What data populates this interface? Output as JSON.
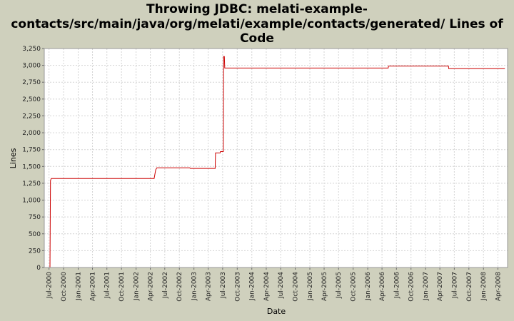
{
  "chart_data": {
    "type": "line",
    "title_lines": [
      "Throwing JDBC: melati-example-",
      "contacts/src/main/java/org/melati/example/contacts/generated/ Lines of",
      "Code"
    ],
    "xlabel": "Date",
    "ylabel": "Lines",
    "ylim": [
      0,
      3250
    ],
    "yticks": [
      0,
      250,
      500,
      750,
      1000,
      1250,
      1500,
      1750,
      2000,
      2250,
      2500,
      2750,
      3000,
      3250
    ],
    "ytick_labels": [
      "0",
      "250",
      "500",
      "750",
      "1,000",
      "1,250",
      "1,500",
      "1,750",
      "2,000",
      "2,250",
      "2,500",
      "2,750",
      "3,000",
      "3,250"
    ],
    "xlim": [
      "2000-06-01",
      "2008-06-01"
    ],
    "xticks": [
      "2000-07-01",
      "2000-10-01",
      "2001-01-01",
      "2001-04-01",
      "2001-07-01",
      "2001-10-01",
      "2002-01-01",
      "2002-04-01",
      "2002-07-01",
      "2002-10-01",
      "2003-01-01",
      "2003-04-01",
      "2003-07-01",
      "2003-10-01",
      "2004-01-01",
      "2004-04-01",
      "2004-07-01",
      "2004-10-01",
      "2005-01-01",
      "2005-04-01",
      "2005-07-01",
      "2005-10-01",
      "2006-01-01",
      "2006-04-01",
      "2006-07-01",
      "2006-10-01",
      "2007-01-01",
      "2007-04-01",
      "2007-07-01",
      "2007-10-01",
      "2008-01-01",
      "2008-04-01"
    ],
    "xtick_labels": [
      "Jul-2000",
      "Oct-2000",
      "Jan-2001",
      "Apr-2001",
      "Jul-2001",
      "Oct-2001",
      "Jan-2002",
      "Apr-2002",
      "Jul-2002",
      "Oct-2002",
      "Jan-2003",
      "Apr-2003",
      "Jul-2003",
      "Oct-2003",
      "Jan-2004",
      "Apr-2004",
      "Jul-2004",
      "Oct-2004",
      "Jan-2005",
      "Apr-2005",
      "Jul-2005",
      "Oct-2005",
      "Jan-2006",
      "Apr-2006",
      "Jul-2006",
      "Oct-2006",
      "Jan-2007",
      "Apr-2007",
      "Jul-2007",
      "Oct-2007",
      "Jan-2008",
      "Apr-2008"
    ],
    "grid": true,
    "line_color": "#cc0000",
    "plot_background": "#ffffff",
    "grid_color": "#d4d4d4",
    "series": [
      {
        "points": [
          [
            "2000-07-07",
            0
          ],
          [
            "2000-07-10",
            1290
          ],
          [
            "2000-07-15",
            1320
          ],
          [
            "2002-04-25",
            1320
          ],
          [
            "2002-05-05",
            1450
          ],
          [
            "2002-05-12",
            1480
          ],
          [
            "2002-12-05",
            1480
          ],
          [
            "2002-12-10",
            1470
          ],
          [
            "2003-05-15",
            1470
          ],
          [
            "2003-05-17",
            1700
          ],
          [
            "2003-06-15",
            1700
          ],
          [
            "2003-06-17",
            1720
          ],
          [
            "2003-07-05",
            1720
          ],
          [
            "2003-07-07",
            3130
          ],
          [
            "2003-07-12",
            3130
          ],
          [
            "2003-07-14",
            2960
          ],
          [
            "2006-05-10",
            2960
          ],
          [
            "2006-05-12",
            2990
          ],
          [
            "2007-05-25",
            2990
          ],
          [
            "2007-05-27",
            2950
          ],
          [
            "2008-05-15",
            2950
          ]
        ]
      }
    ]
  }
}
